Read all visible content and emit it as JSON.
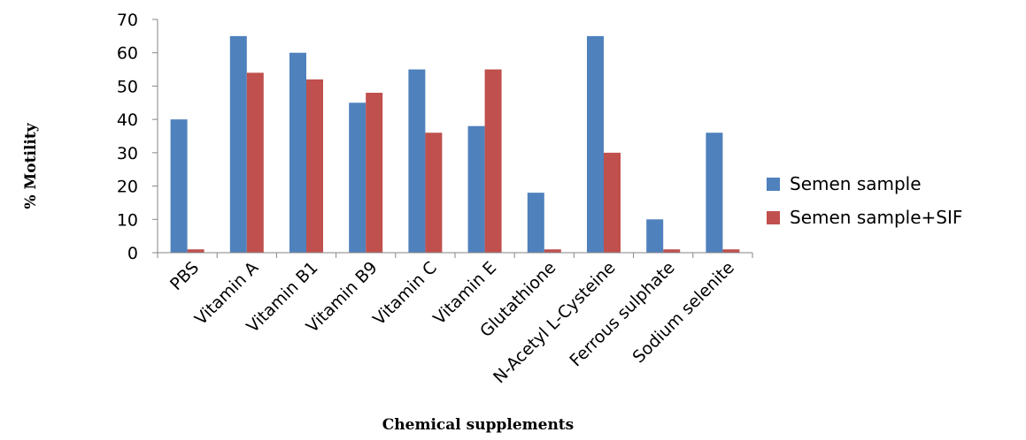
{
  "chart_data": {
    "type": "bar",
    "title": "",
    "xlabel": "Chemical supplements",
    "ylabel": "% Motility",
    "ylim": [
      0,
      70
    ],
    "yticks": [
      0,
      10,
      20,
      30,
      40,
      50,
      60,
      70
    ],
    "grid": false,
    "legend_position": "right",
    "categories": [
      "PBS",
      "Vitamin A",
      "Vitamin B1",
      "Vitamin B9",
      "Vitamin C",
      "Vitamin E",
      "Glutathione",
      "N-Acetyl L-Cysteine",
      "Ferrous sulphate",
      "Sodium selenite"
    ],
    "series": [
      {
        "name": "Semen sample",
        "color": "#4F81BD",
        "values": [
          40,
          65,
          60,
          45,
          55,
          38,
          18,
          65,
          10,
          36
        ]
      },
      {
        "name": "Semen sample+SIF",
        "color": "#C0504D",
        "values": [
          1,
          54,
          52,
          48,
          36,
          55,
          1,
          30,
          1,
          1
        ]
      }
    ]
  }
}
